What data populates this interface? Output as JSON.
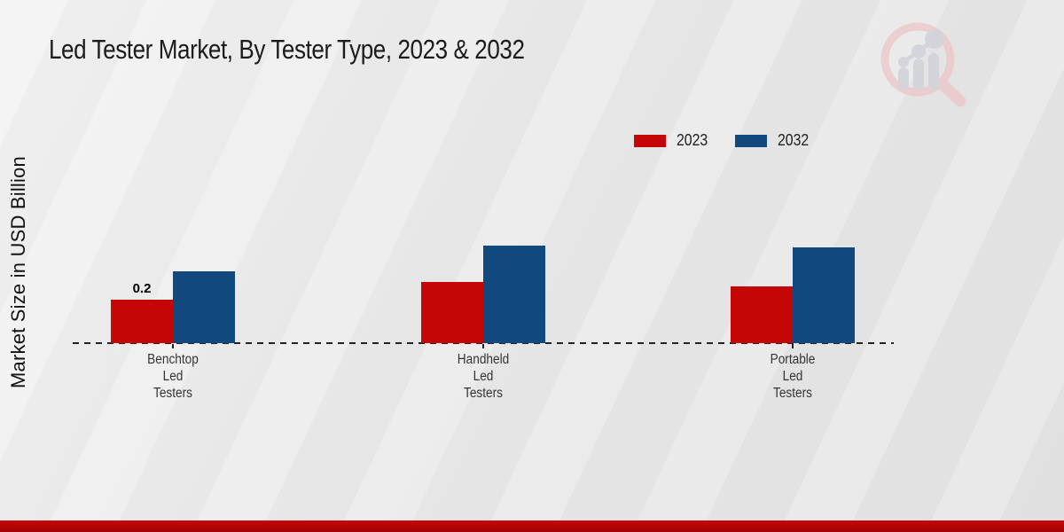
{
  "title": "Led Tester Market, By Tester Type, 2023 & 2032",
  "ylabel": "Market Size in USD Billion",
  "legend": [
    {
      "label": "2023",
      "color": "#c40606"
    },
    {
      "label": "2032",
      "color": "#11497f"
    }
  ],
  "colors": {
    "series_2023": "#c40606",
    "series_2032": "#11497f",
    "banner_red": "#b00404",
    "axis": "#222222",
    "text": "#1b1b1b"
  },
  "icons": {
    "watermark": "magnifier-growth-bar-chart-logo"
  },
  "chart_data": {
    "type": "bar",
    "categories": [
      "Benchtop Led Testers",
      "Handheld Led Testers",
      "Portable Led Testers"
    ],
    "category_lines": [
      [
        "Benchtop",
        "Led",
        "Testers"
      ],
      [
        "Handheld",
        "Led",
        "Testers"
      ],
      [
        "Portable",
        "Led",
        "Testers"
      ]
    ],
    "series": [
      {
        "name": "2023",
        "color": "#c40606",
        "values": [
          0.2,
          0.28,
          0.26
        ]
      },
      {
        "name": "2032",
        "color": "#11497f",
        "values": [
          0.33,
          0.45,
          0.44
        ]
      }
    ],
    "data_labels": [
      {
        "series": "2023",
        "category": "Benchtop Led Testers",
        "text": "0.2"
      }
    ],
    "title": "Led Tester Market, By Tester Type, 2023 & 2032",
    "xlabel": "",
    "ylabel": "Market Size in USD Billion",
    "ylim": [
      0,
      0.5
    ],
    "grid": false,
    "legend_position": "top-right",
    "baseline_style": "dashed",
    "y_axis_ticks_visible": false
  }
}
